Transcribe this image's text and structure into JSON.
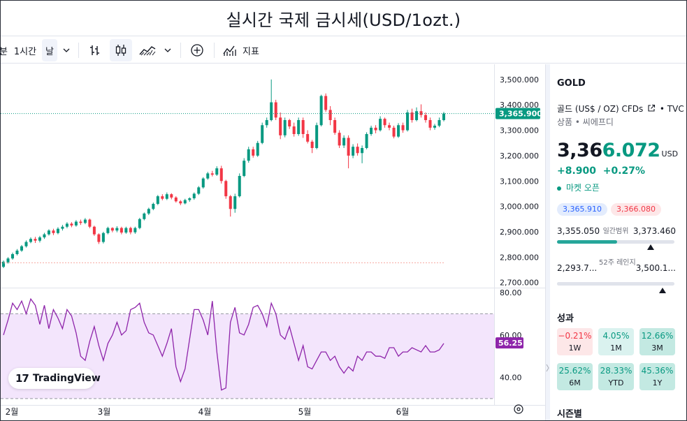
{
  "page": {
    "title": "실시간 국제 금시세(USD/1ozt.)"
  },
  "toolbar": {
    "cut_text": "분",
    "interval": "1시간",
    "chart_period": "날",
    "indicators_label": "지표",
    "icons": [
      "chevron-down-icon",
      "bar-chart-icon",
      "candles-icon",
      "area-chart-icon",
      "chevron-down-icon",
      "add-circle-icon",
      "indicators-icon"
    ]
  },
  "chart": {
    "price_axis": [
      "3,500.000",
      "3,400.000",
      "3,300.000",
      "3,200.000",
      "3,100.000",
      "3,000.000",
      "2,900.000",
      "2,800.000",
      "2,700.000"
    ],
    "current_price_label": "3,365.900",
    "current_price": 3365.9,
    "rsi_axis": [
      "80.00",
      "60.00",
      "40.00"
    ],
    "rsi_value_label": "56.25",
    "rsi_value": 56.25,
    "rsi_band": [
      30,
      70
    ],
    "time_axis": [
      "2월",
      "3월",
      "4월",
      "5월",
      "6월"
    ],
    "price_range": [
      2680,
      3560
    ],
    "rsi_range": [
      27,
      82
    ],
    "colors": {
      "up": "#089981",
      "down": "#f23645",
      "rsi_line": "#8e24aa",
      "rsi_band": "#f3e5fc",
      "price_line": "#089981"
    },
    "candles": [
      [
        2762,
        2782,
        2757,
        2787
      ],
      [
        2780,
        2795,
        2775,
        2800
      ],
      [
        2795,
        2812,
        2790,
        2818
      ],
      [
        2812,
        2826,
        2807,
        2832
      ],
      [
        2826,
        2843,
        2821,
        2848
      ],
      [
        2843,
        2860,
        2838,
        2866
      ],
      [
        2860,
        2872,
        2855,
        2878
      ],
      [
        2872,
        2865,
        2856,
        2880
      ],
      [
        2865,
        2878,
        2858,
        2884
      ],
      [
        2878,
        2890,
        2872,
        2896
      ],
      [
        2890,
        2905,
        2885,
        2910
      ],
      [
        2905,
        2895,
        2887,
        2912
      ],
      [
        2895,
        2912,
        2890,
        2918
      ],
      [
        2912,
        2920,
        2905,
        2927
      ],
      [
        2920,
        2932,
        2914,
        2938
      ],
      [
        2932,
        2925,
        2918,
        2938
      ],
      [
        2925,
        2940,
        2920,
        2946
      ],
      [
        2940,
        2935,
        2927,
        2948
      ],
      [
        2935,
        2948,
        2930,
        2954
      ],
      [
        2948,
        2920,
        2914,
        2952
      ],
      [
        2920,
        2890,
        2884,
        2924
      ],
      [
        2890,
        2860,
        2852,
        2894
      ],
      [
        2860,
        2895,
        2854,
        2900
      ],
      [
        2895,
        2915,
        2890,
        2920
      ],
      [
        2915,
        2905,
        2898,
        2918
      ],
      [
        2905,
        2915,
        2898,
        2922
      ],
      [
        2915,
        2897,
        2890,
        2920
      ],
      [
        2897,
        2915,
        2892,
        2920
      ],
      [
        2915,
        2898,
        2890,
        2920
      ],
      [
        2898,
        2915,
        2892,
        2920
      ],
      [
        2915,
        2950,
        2910,
        2955
      ],
      [
        2950,
        2972,
        2945,
        2976
      ],
      [
        2972,
        2990,
        2966,
        2995
      ],
      [
        2990,
        3010,
        2985,
        3015
      ],
      [
        3010,
        3040,
        3005,
        3045
      ],
      [
        3040,
        3030,
        3024,
        3048
      ],
      [
        3030,
        3048,
        3025,
        3055
      ],
      [
        3048,
        3035,
        3028,
        3052
      ],
      [
        3035,
        3020,
        3015,
        3040
      ],
      [
        3020,
        3012,
        3005,
        3025
      ],
      [
        3012,
        3025,
        3008,
        3030
      ],
      [
        3025,
        3032,
        3018,
        3036
      ],
      [
        3032,
        3050,
        3026,
        3055
      ],
      [
        3050,
        3075,
        3045,
        3080
      ],
      [
        3075,
        3110,
        3070,
        3115
      ],
      [
        3110,
        3130,
        3105,
        3136
      ],
      [
        3130,
        3125,
        3118,
        3140
      ],
      [
        3125,
        3150,
        3120,
        3158
      ],
      [
        3150,
        3100,
        3090,
        3160
      ],
      [
        3100,
        3040,
        3030,
        3105
      ],
      [
        3040,
        2990,
        2960,
        3045
      ],
      [
        2990,
        3040,
        2975,
        3050
      ],
      [
        3040,
        3120,
        3035,
        3130
      ],
      [
        3120,
        3180,
        3115,
        3190
      ],
      [
        3180,
        3225,
        3172,
        3235
      ],
      [
        3225,
        3200,
        3192,
        3235
      ],
      [
        3200,
        3250,
        3195,
        3258
      ],
      [
        3250,
        3320,
        3245,
        3330
      ],
      [
        3320,
        3340,
        3310,
        3350
      ],
      [
        3340,
        3410,
        3335,
        3500
      ],
      [
        3410,
        3350,
        3340,
        3420
      ],
      [
        3350,
        3280,
        3265,
        3370
      ],
      [
        3280,
        3340,
        3272,
        3350
      ],
      [
        3340,
        3315,
        3305,
        3345
      ],
      [
        3315,
        3285,
        3275,
        3330
      ],
      [
        3285,
        3340,
        3278,
        3350
      ],
      [
        3340,
        3285,
        3270,
        3350
      ],
      [
        3285,
        3255,
        3248,
        3300
      ],
      [
        3255,
        3230,
        3210,
        3262
      ],
      [
        3230,
        3320,
        3225,
        3330
      ],
      [
        3320,
        3435,
        3315,
        3440
      ],
      [
        3435,
        3380,
        3372,
        3445
      ],
      [
        3380,
        3340,
        3320,
        3395
      ],
      [
        3340,
        3290,
        3282,
        3350
      ],
      [
        3290,
        3240,
        3230,
        3300
      ],
      [
        3240,
        3270,
        3230,
        3280
      ],
      [
        3270,
        3200,
        3150,
        3280
      ],
      [
        3200,
        3235,
        3190,
        3245
      ],
      [
        3235,
        3210,
        3200,
        3248
      ],
      [
        3210,
        3230,
        3170,
        3240
      ],
      [
        3230,
        3285,
        3225,
        3292
      ],
      [
        3285,
        3310,
        3278,
        3318
      ],
      [
        3310,
        3300,
        3288,
        3320
      ],
      [
        3300,
        3345,
        3295,
        3355
      ],
      [
        3345,
        3320,
        3310,
        3350
      ],
      [
        3320,
        3310,
        3300,
        3330
      ],
      [
        3310,
        3275,
        3268,
        3318
      ],
      [
        3275,
        3320,
        3270,
        3328
      ],
      [
        3320,
        3300,
        3290,
        3330
      ],
      [
        3300,
        3370,
        3295,
        3380
      ],
      [
        3370,
        3340,
        3330,
        3385
      ],
      [
        3340,
        3375,
        3335,
        3390
      ],
      [
        3375,
        3360,
        3350,
        3402
      ],
      [
        3360,
        3340,
        3330,
        3370
      ],
      [
        3340,
        3310,
        3300,
        3350
      ],
      [
        3310,
        3318,
        3302,
        3325
      ],
      [
        3318,
        3340,
        3312,
        3350
      ],
      [
        3340,
        3366,
        3335,
        3372
      ]
    ],
    "rsi": [
      60,
      67,
      75,
      72,
      76,
      70,
      77,
      74,
      65,
      74,
      63,
      72,
      68,
      63,
      72,
      69,
      61,
      50,
      48,
      57,
      64,
      55,
      48,
      56,
      60,
      66,
      60,
      62,
      72,
      73,
      75,
      66,
      61,
      60,
      55,
      50,
      56,
      63,
      45,
      38,
      44,
      58,
      72,
      72,
      67,
      60,
      76,
      52,
      34,
      35,
      66,
      73,
      61,
      60,
      65,
      73,
      74,
      70,
      64,
      75,
      70,
      60,
      58,
      64,
      56,
      48,
      55,
      45,
      44,
      48,
      52,
      52,
      48,
      50,
      45,
      42,
      45,
      43,
      50,
      48,
      52,
      52,
      50,
      50,
      49,
      54,
      54,
      50,
      52,
      52,
      54,
      53,
      52,
      55,
      52,
      52,
      53,
      56
    ]
  },
  "brand": {
    "logo_text": "TradingView"
  },
  "details": {
    "symbol": "GOLD",
    "description": "골드 (US$ / OZ) CFDs",
    "source": "• TVC",
    "category": "상품 • 씨에프디",
    "price_main": "3,36",
    "price_tail": "6.072",
    "currency": "USD",
    "change_abs": "+8.900",
    "change_pct": "+0.27%",
    "market_status": "마켓 오픈",
    "bid": "3,365.910",
    "ask": "3,366.080",
    "day_low": "3,355.050",
    "day_range_label": "일간범위",
    "day_high": "3,373.460",
    "day_position": 0.62,
    "wk52_low": "2,293.7...",
    "wk52_label": "52주 레인지",
    "wk52_high": "3,500.1...",
    "wk52_position": 0.9,
    "performance_title": "성과",
    "performance": [
      {
        "value": "−0.21%",
        "period": "1W",
        "tone": "neg"
      },
      {
        "value": "4.05%",
        "period": "1M",
        "tone": "pos"
      },
      {
        "value": "12.66%",
        "period": "3M",
        "tone": "pos-strong"
      },
      {
        "value": "25.62%",
        "period": "6M",
        "tone": "pos-strong"
      },
      {
        "value": "28.33%",
        "period": "YTD",
        "tone": "pos-strong"
      },
      {
        "value": "45.36%",
        "period": "1Y",
        "tone": "pos-strong"
      }
    ],
    "seasonal_title": "시즌별"
  }
}
